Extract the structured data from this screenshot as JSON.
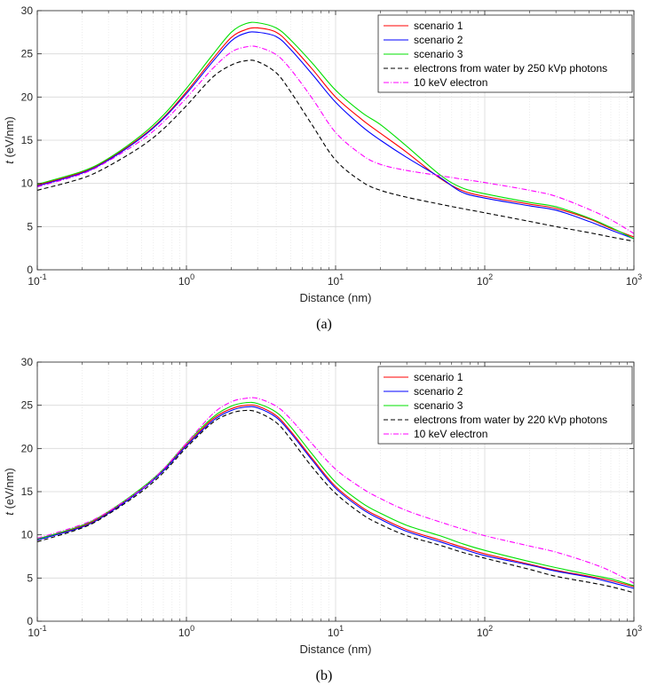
{
  "chart_data": [
    {
      "type": "line",
      "panel": "a",
      "xscale": "log",
      "xlim": [
        0.1,
        1000
      ],
      "ylim": [
        0,
        30
      ],
      "xlabel": "Distance (nm)",
      "ylabel_symbol": "t",
      "ylabel_unit": " (eV/nm)",
      "xticks": [
        0.1,
        1,
        10,
        100,
        1000
      ],
      "xtick_labels": [
        {
          "base": "10",
          "exp": "-1"
        },
        {
          "base": "10",
          "exp": "0"
        },
        {
          "base": "10",
          "exp": "1"
        },
        {
          "base": "10",
          "exp": "2"
        },
        {
          "base": "10",
          "exp": "3"
        }
      ],
      "yticks": [
        0,
        5,
        10,
        15,
        20,
        25,
        30
      ],
      "ytick_labels": [
        "0",
        "5",
        "10",
        "15",
        "20",
        "25",
        "30"
      ],
      "grid": true,
      "legend_position": "top-right",
      "x": [
        0.1,
        0.2,
        0.3,
        0.5,
        0.7,
        1,
        1.5,
        2,
        2.5,
        3,
        4,
        5,
        7,
        10,
        15,
        20,
        30,
        50,
        70,
        100,
        200,
        300,
        500,
        700,
        1000
      ],
      "series": [
        {
          "name": "scenario 1",
          "color": "#ff0000",
          "dash": "",
          "values": [
            9.8,
            11.3,
            12.8,
            15.4,
            17.6,
            20.6,
            24.4,
            26.9,
            27.8,
            28.0,
            27.5,
            26.0,
            23.2,
            20.0,
            17.4,
            15.8,
            13.6,
            10.6,
            9.2,
            8.5,
            7.6,
            7.1,
            5.9,
            4.8,
            3.8
          ]
        },
        {
          "name": "scenario 2",
          "color": "#0000ff",
          "dash": "",
          "values": [
            9.7,
            11.2,
            12.7,
            15.3,
            17.5,
            20.4,
            24.1,
            26.5,
            27.4,
            27.5,
            27.0,
            25.5,
            22.6,
            19.4,
            16.6,
            15.0,
            13.0,
            10.7,
            9.0,
            8.3,
            7.4,
            6.9,
            5.6,
            4.6,
            3.6
          ]
        },
        {
          "name": "scenario 3",
          "color": "#00e000",
          "dash": "",
          "values": [
            9.9,
            11.4,
            12.9,
            15.6,
            17.9,
            21.0,
            24.9,
            27.5,
            28.5,
            28.6,
            28.0,
            26.6,
            23.9,
            20.8,
            18.2,
            16.8,
            14.3,
            11.0,
            9.5,
            8.8,
            7.8,
            7.3,
            6.0,
            4.9,
            3.6
          ]
        },
        {
          "name": "electrons from water by 250 kVp photons",
          "color": "#000000",
          "dash": "5,3",
          "values": [
            9.2,
            10.6,
            12.0,
            14.3,
            16.3,
            19.0,
            22.3,
            23.7,
            24.2,
            24.1,
            22.8,
            20.6,
            16.7,
            12.7,
            10.2,
            9.2,
            8.4,
            7.6,
            7.1,
            6.6,
            5.6,
            5.0,
            4.3,
            3.8,
            3.3
          ]
        },
        {
          "name": "10 keV electron",
          "color": "#ff00ff",
          "dash": "6,2,1,2",
          "values": [
            9.6,
            11.1,
            12.6,
            15.0,
            17.1,
            19.9,
            23.3,
            25.2,
            25.8,
            25.8,
            24.9,
            23.2,
            19.8,
            15.9,
            13.3,
            12.2,
            11.5,
            10.9,
            10.5,
            10.1,
            9.2,
            8.5,
            7.0,
            5.8,
            4.2
          ]
        }
      ]
    },
    {
      "type": "line",
      "panel": "b",
      "xscale": "log",
      "xlim": [
        0.1,
        1000
      ],
      "ylim": [
        0,
        30
      ],
      "xlabel": "Distance (nm)",
      "ylabel_symbol": "t",
      "ylabel_unit": " (eV/nm)",
      "xticks": [
        0.1,
        1,
        10,
        100,
        1000
      ],
      "xtick_labels": [
        {
          "base": "10",
          "exp": "-1"
        },
        {
          "base": "10",
          "exp": "0"
        },
        {
          "base": "10",
          "exp": "1"
        },
        {
          "base": "10",
          "exp": "2"
        },
        {
          "base": "10",
          "exp": "3"
        }
      ],
      "yticks": [
        0,
        5,
        10,
        15,
        20,
        25,
        30
      ],
      "ytick_labels": [
        "0",
        "5",
        "10",
        "15",
        "20",
        "25",
        "30"
      ],
      "grid": true,
      "legend_position": "top-right",
      "x": [
        0.1,
        0.2,
        0.3,
        0.5,
        0.7,
        1,
        1.5,
        2,
        2.5,
        3,
        4,
        5,
        7,
        10,
        15,
        20,
        30,
        50,
        70,
        100,
        200,
        300,
        500,
        700,
        1000
      ],
      "series": [
        {
          "name": "scenario 1",
          "color": "#ff0000",
          "dash": "",
          "values": [
            9.4,
            11.0,
            12.6,
            15.3,
            17.5,
            20.4,
            23.4,
            24.6,
            25.0,
            24.9,
            23.8,
            22.0,
            18.8,
            15.6,
            13.2,
            12.0,
            10.6,
            9.4,
            8.6,
            7.8,
            6.6,
            5.9,
            5.2,
            4.7,
            4.0
          ]
        },
        {
          "name": "scenario 2",
          "color": "#0000ff",
          "dash": "",
          "values": [
            9.4,
            10.9,
            12.5,
            15.2,
            17.4,
            20.3,
            23.2,
            24.4,
            24.8,
            24.7,
            23.6,
            21.8,
            18.6,
            15.4,
            13.0,
            11.8,
            10.4,
            9.2,
            8.4,
            7.6,
            6.5,
            5.8,
            5.1,
            4.5,
            3.8
          ]
        },
        {
          "name": "scenario 3",
          "color": "#00e000",
          "dash": "",
          "values": [
            9.5,
            11.1,
            12.7,
            15.4,
            17.6,
            20.6,
            23.6,
            24.9,
            25.3,
            25.2,
            24.2,
            22.5,
            19.3,
            16.1,
            13.7,
            12.5,
            11.1,
            9.9,
            9.0,
            8.2,
            6.9,
            6.2,
            5.4,
            4.9,
            4.1
          ]
        },
        {
          "name": "electrons from water by 220 kVp photons",
          "color": "#000000",
          "dash": "5,3",
          "values": [
            9.2,
            10.8,
            12.4,
            15.0,
            17.2,
            20.1,
            23.0,
            24.1,
            24.4,
            24.2,
            23.0,
            21.1,
            17.8,
            14.8,
            12.4,
            11.2,
            9.9,
            8.8,
            8.0,
            7.3,
            6.0,
            5.2,
            4.5,
            4.0,
            3.3
          ]
        },
        {
          "name": "10 keV electron",
          "color": "#ff00ff",
          "dash": "6,2,1,2",
          "values": [
            9.6,
            11.2,
            12.7,
            15.3,
            17.6,
            20.6,
            24.0,
            25.4,
            25.8,
            25.8,
            24.9,
            23.4,
            20.5,
            17.6,
            15.4,
            14.2,
            12.8,
            11.5,
            10.7,
            9.9,
            8.7,
            8.0,
            6.8,
            5.8,
            4.4
          ]
        }
      ]
    }
  ],
  "captions": [
    "(a)",
    "(b)"
  ]
}
